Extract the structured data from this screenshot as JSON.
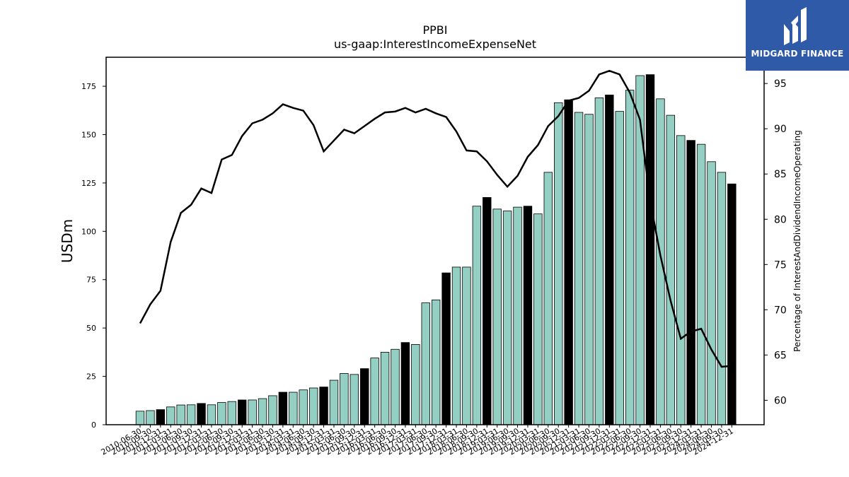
{
  "chart_data": {
    "type": "bar+line",
    "title": "PPBI",
    "subtitle": "us-gaap:InterestIncomeExpenseNet",
    "ylabel": "USDm",
    "y2label": "Percentage of InterestAndDividendIncomeOperating",
    "ylim": [
      0,
      190
    ],
    "y2lim": [
      57.3,
      97.9
    ],
    "yticks": [
      0,
      25,
      50,
      75,
      100,
      125,
      150,
      175
    ],
    "y2ticks": [
      60,
      65,
      70,
      75,
      80,
      85,
      90,
      95
    ],
    "categories": [
      "2010-06-30",
      "2010-09-30",
      "2010-12-31",
      "2011-03-31",
      "2011-06-30",
      "2011-09-30",
      "2011-12-31",
      "2012-03-31",
      "2012-06-30",
      "2012-09-30",
      "2012-12-31",
      "2013-03-31",
      "2013-06-30",
      "2013-09-30",
      "2013-12-31",
      "2014-03-31",
      "2014-06-30",
      "2014-09-30",
      "2014-12-31",
      "2015-03-31",
      "2015-06-30",
      "2015-09-30",
      "2015-12-31",
      "2016-03-31",
      "2016-06-30",
      "2016-09-30",
      "2016-12-31",
      "2017-03-31",
      "2017-06-30",
      "2017-09-30",
      "2017-12-31",
      "2018-03-31",
      "2018-06-30",
      "2018-09-30",
      "2018-12-31",
      "2019-03-31",
      "2019-06-30",
      "2019-09-30",
      "2019-12-31",
      "2020-03-31",
      "2020-06-30",
      "2020-09-30",
      "2020-12-31",
      "2021-03-31",
      "2021-06-30",
      "2021-09-30",
      "2021-12-31",
      "2022-03-31",
      "2022-06-30",
      "2022-09-30",
      "2022-12-31",
      "2023-03-31",
      "2023-06-30",
      "2023-09-30",
      "2023-12-31",
      "2024-03-31",
      "2024-06-30",
      "2024-09-30",
      "2024-12-31"
    ],
    "bar_series": {
      "name": "InterestIncomeExpenseNet",
      "values": [
        7,
        7.3,
        7.8,
        9.2,
        10.2,
        10.3,
        11,
        10.3,
        11.5,
        12,
        12.8,
        12.8,
        13.5,
        15,
        16.8,
        16.8,
        18,
        19,
        19.5,
        23,
        26.5,
        26,
        29,
        34.5,
        37.5,
        39,
        42.5,
        41.5,
        63,
        64.5,
        78.5,
        81.5,
        81.5,
        113,
        117.5,
        111.5,
        110.5,
        112.5,
        113,
        109,
        130.5,
        166.5,
        168,
        161.5,
        160.5,
        169,
        170.5,
        162,
        173,
        180.5,
        181,
        168.5,
        160,
        149.5,
        147,
        145,
        136,
        130.5,
        124.5
      ],
      "colors": {
        "normal": "#93d0c3",
        "year_end": "#000000"
      }
    },
    "line_series": {
      "name": "Percentage of InterestAndDividendIncomeOperating",
      "values": [
        68.5,
        70.6,
        72.1,
        77.5,
        80.7,
        81.6,
        83.4,
        82.9,
        86.6,
        87.1,
        89.2,
        90.6,
        91.0,
        91.7,
        92.7,
        92.3,
        92.0,
        90.4,
        87.5,
        88.7,
        89.9,
        89.5,
        90.3,
        91.1,
        91.8,
        91.9,
        92.3,
        91.8,
        92.2,
        91.7,
        91.3,
        89.7,
        87.6,
        87.5,
        86.4,
        84.9,
        83.6,
        84.8,
        86.9,
        88.2,
        90.3,
        91.4,
        93.1,
        93.4,
        94.2,
        96.0,
        96.4,
        96.0,
        94.0,
        91.0,
        82.0,
        76.0,
        71.0,
        66.8,
        67.6,
        67.9,
        65.6,
        63.7,
        63.8
      ]
    }
  },
  "logo": {
    "text": "MIDGARD FINANCE",
    "color": "#2e5aa8"
  }
}
